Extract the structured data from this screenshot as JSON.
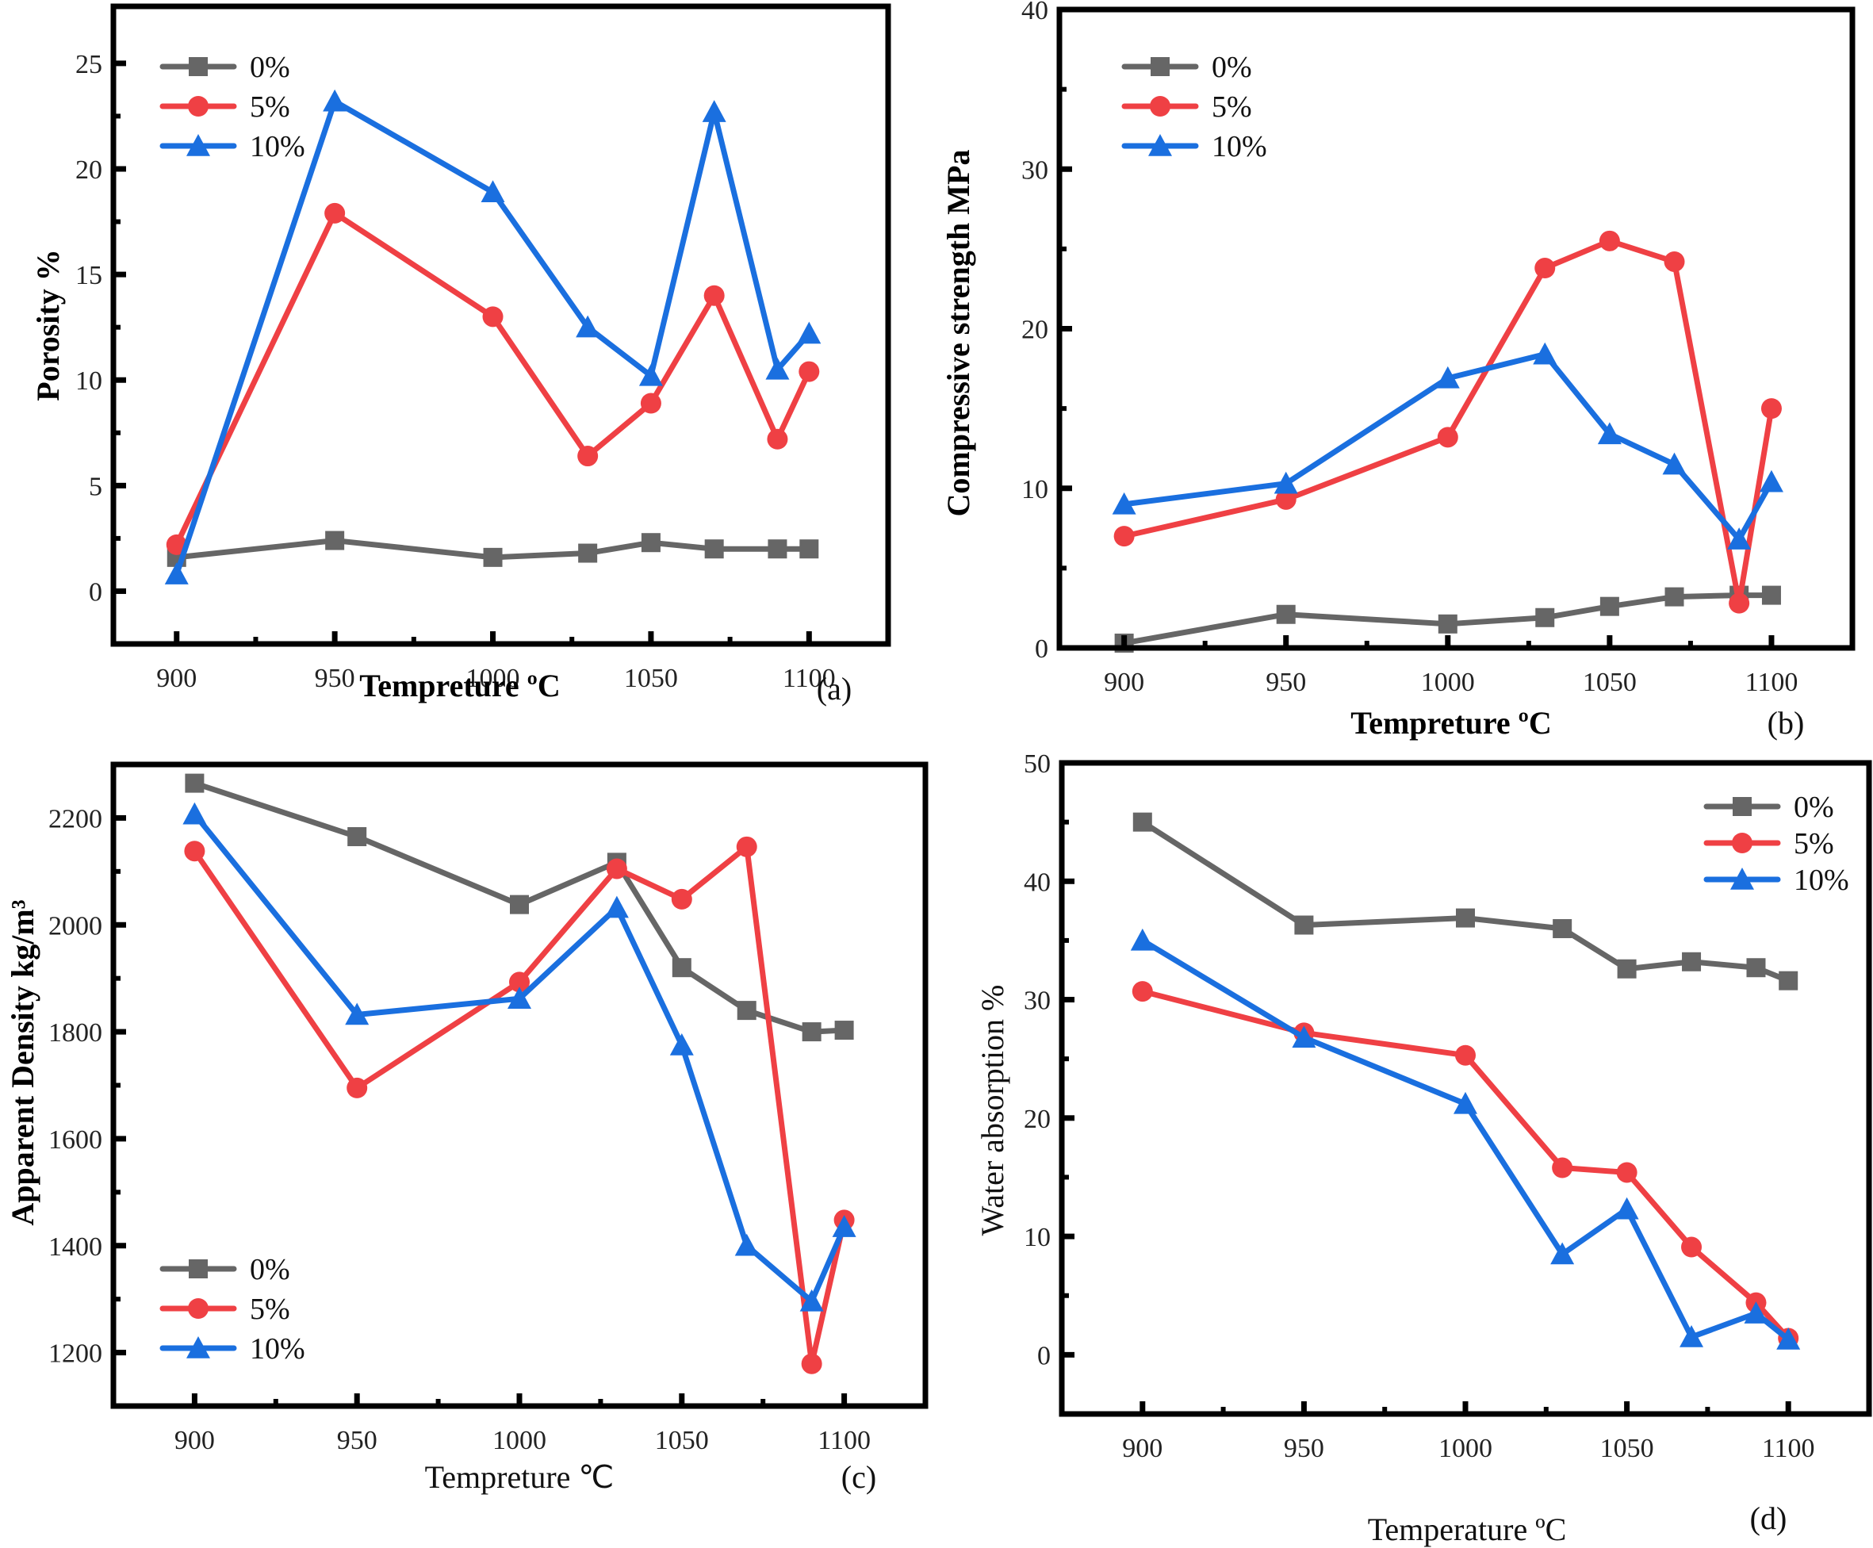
{
  "colors": {
    "0%": "#666666",
    "5%": "#EF4044",
    "10%": "#1A6FDF"
  },
  "chart_data": [
    {
      "id": "a",
      "type": "line",
      "panel_label": "(a)",
      "title": "",
      "xlabel": "Tempreture ºC",
      "ylabel": "Porosity %",
      "x": [
        900,
        950,
        1000,
        1030,
        1050,
        1070,
        1090,
        1100
      ],
      "xlim": [
        880,
        1125
      ],
      "xticks": [
        900,
        950,
        1000,
        1050,
        1100
      ],
      "ylim": [
        -2.5,
        27.7
      ],
      "yticks": [
        0,
        5,
        10,
        15,
        20,
        25
      ],
      "legend_position": "top-left",
      "grid": false,
      "series": [
        {
          "name": "0%",
          "marker": "square",
          "values": [
            1.6,
            2.4,
            1.6,
            1.8,
            2.3,
            2.0,
            2.0,
            2.0
          ]
        },
        {
          "name": "5%",
          "marker": "circle",
          "values": [
            2.2,
            17.9,
            13.0,
            6.4,
            8.9,
            14.0,
            7.2,
            10.4
          ]
        },
        {
          "name": "10%",
          "marker": "triangle",
          "values": [
            0.8,
            23.2,
            18.9,
            12.5,
            10.2,
            22.7,
            10.5,
            12.2
          ]
        }
      ]
    },
    {
      "id": "b",
      "type": "line",
      "panel_label": "(b)",
      "title": "",
      "xlabel": "Tempreture ºC",
      "ylabel": "Compressive strength MPa",
      "x": [
        900,
        950,
        1000,
        1030,
        1050,
        1070,
        1090,
        1100
      ],
      "xlim": [
        880,
        1125
      ],
      "xticks": [
        900,
        950,
        1000,
        1050,
        1100
      ],
      "ylim": [
        0,
        40
      ],
      "yticks": [
        0,
        10,
        20,
        30,
        40
      ],
      "legend_position": "top-left",
      "grid": false,
      "series": [
        {
          "name": "0%",
          "marker": "square",
          "values": [
            0.3,
            2.1,
            1.5,
            1.9,
            2.6,
            3.2,
            3.3,
            3.3
          ]
        },
        {
          "name": "5%",
          "marker": "circle",
          "values": [
            7.0,
            9.3,
            13.2,
            23.8,
            25.5,
            24.2,
            2.8,
            15.0
          ]
        },
        {
          "name": "10%",
          "marker": "triangle",
          "values": [
            9.0,
            10.3,
            16.9,
            18.4,
            13.4,
            11.5,
            6.8,
            10.4
          ]
        }
      ]
    },
    {
      "id": "c",
      "type": "line",
      "panel_label": "(c)",
      "title": "",
      "xlabel": "Tempreture ℃",
      "ylabel": "Apparent Density kg/m³",
      "x": [
        900,
        950,
        1000,
        1030,
        1050,
        1070,
        1090,
        1100
      ],
      "xlim": [
        875,
        1125
      ],
      "xticks": [
        900,
        950,
        1000,
        1050,
        1100
      ],
      "ylim": [
        1100,
        2300
      ],
      "yticks": [
        1200,
        1400,
        1600,
        1800,
        2000,
        2200
      ],
      "legend_position": "bottom-left",
      "grid": false,
      "series": [
        {
          "name": "0%",
          "marker": "square",
          "values": [
            2265,
            2165,
            2038,
            2117,
            1920,
            1840,
            1800,
            1803
          ]
        },
        {
          "name": "5%",
          "marker": "circle",
          "values": [
            2138,
            1695,
            1893,
            2105,
            2048,
            2146,
            1179,
            1448
          ]
        },
        {
          "name": "10%",
          "marker": "triangle",
          "values": [
            2207,
            1832,
            1862,
            2032,
            1775,
            1400,
            1296,
            1435
          ]
        }
      ]
    },
    {
      "id": "d",
      "type": "line",
      "panel_label": "(d)",
      "title": "",
      "xlabel": "Temperature ºC",
      "ylabel": "Water absorption %",
      "x": [
        900,
        950,
        1000,
        1030,
        1050,
        1070,
        1090,
        1100
      ],
      "xlim": [
        875,
        1125
      ],
      "xticks": [
        900,
        950,
        1000,
        1050,
        1100
      ],
      "ylim": [
        -5,
        50
      ],
      "yticks": [
        0,
        10,
        20,
        30,
        40,
        50
      ],
      "legend_position": "top-right",
      "grid": false,
      "series": [
        {
          "name": "0%",
          "marker": "square",
          "values": [
            45.0,
            36.3,
            36.9,
            36.0,
            32.6,
            33.2,
            32.7,
            31.6
          ]
        },
        {
          "name": "5%",
          "marker": "circle",
          "values": [
            30.7,
            27.2,
            25.3,
            15.8,
            15.4,
            9.1,
            4.4,
            1.4
          ]
        },
        {
          "name": "10%",
          "marker": "triangle",
          "values": [
            35.0,
            26.8,
            21.2,
            8.5,
            12.3,
            1.5,
            3.5,
            1.3
          ]
        }
      ]
    }
  ]
}
